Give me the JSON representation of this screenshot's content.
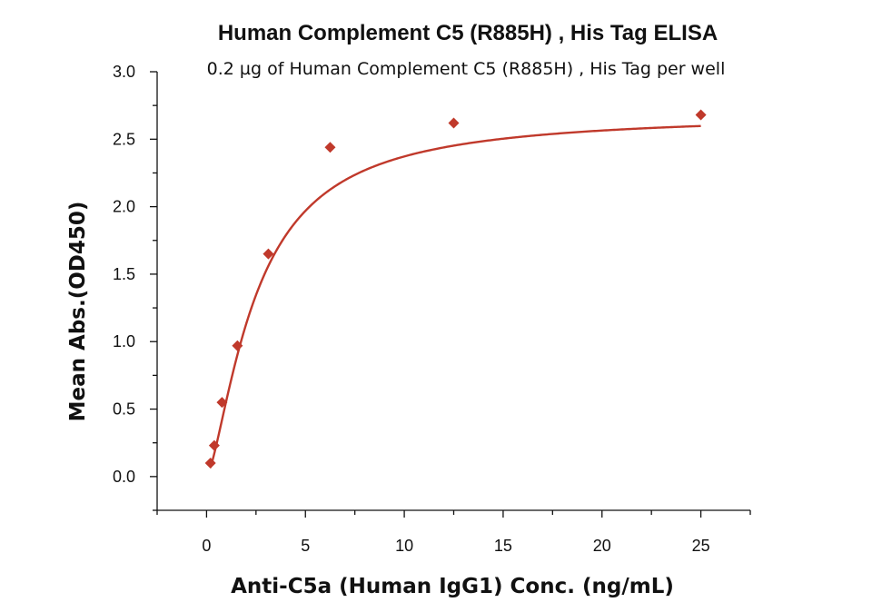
{
  "chart_data": {
    "type": "scatter",
    "title": "Human Complement C5 (R885H) , His Tag ELISA",
    "subtitle": "0.2 µg of Human Complement C5 (R885H) , His Tag per well",
    "xlabel": "Anti-C5a (Human IgG1) Conc. (ng/mL)",
    "ylabel": "Mean Abs.(OD450)",
    "xlim": [
      -2.5,
      27.5
    ],
    "ylim": [
      -0.25,
      3.0
    ],
    "xticks": [
      0,
      5,
      10,
      15,
      20,
      25
    ],
    "yticks": [
      0.0,
      0.5,
      1.0,
      1.5,
      2.0,
      2.5,
      3.0
    ],
    "xtick_labels": [
      "0",
      "5",
      "10",
      "15",
      "20",
      "25"
    ],
    "ytick_labels": [
      "0.0",
      "0.5",
      "1.0",
      "1.5",
      "2.0",
      "2.5",
      "3.0"
    ],
    "grid": false,
    "color": "#c0392b",
    "series": [
      {
        "marker": "diamond",
        "x": [
          0.195,
          0.39,
          0.78,
          1.56,
          3.125,
          6.25,
          12.5,
          25
        ],
        "y": [
          0.1,
          0.23,
          0.55,
          0.97,
          1.65,
          2.44,
          2.62,
          2.68
        ],
        "fit_curve": true
      }
    ]
  }
}
